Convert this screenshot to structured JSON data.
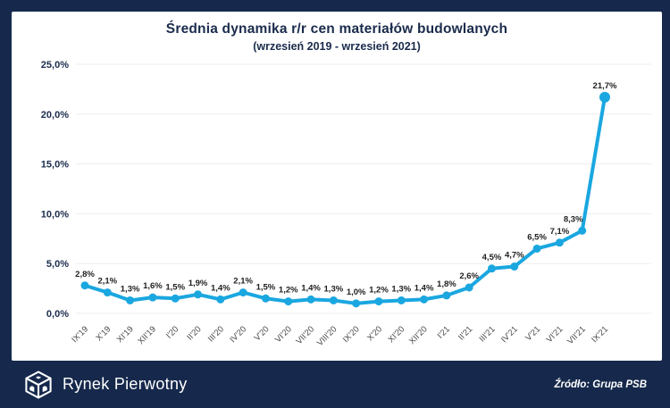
{
  "header": {
    "title": "Średnia dynamika r/r cen materiałów budowlanych",
    "subtitle": "(wrzesień 2019 - wrzesień 2021)"
  },
  "footer": {
    "brand": "Rynek Pierwotny",
    "source": "Źródło: Grupa PSB",
    "logo_icon": "cube-house-logo"
  },
  "colors": {
    "background_navy": "#16294c",
    "card_white": "#ffffff",
    "line_blue": "#1aa7e0",
    "title_navy": "#1a2b4c",
    "gridline_gray": "#ededed",
    "x_label_gray": "#4a4a4a",
    "data_label_dark": "#1f1f1f"
  },
  "chart_data": {
    "type": "line",
    "title": "Średnia dynamika r/r cen materiałów budowlanych",
    "subtitle": "(wrzesień 2019 - wrzesień 2021)",
    "xlabel": "",
    "ylabel": "",
    "ylim": [
      0,
      25
    ],
    "grid": true,
    "legend": false,
    "y_ticks": [
      "25,0%",
      "20,0%",
      "15,0%",
      "10,0%",
      "5,0%",
      "0,0%"
    ],
    "y_tick_values": [
      25,
      20,
      15,
      10,
      5,
      0
    ],
    "categories": [
      "IX'19",
      "X'19",
      "XI'19",
      "XII'19",
      "I'20",
      "II'20",
      "III'20",
      "IV'20",
      "V'20",
      "VI'20",
      "VII'20",
      "VIII'20",
      "IX'20",
      "X'20",
      "XI'20",
      "XII'20",
      "I'21",
      "II'21",
      "III'21",
      "IV'21",
      "V'21",
      "VI'21",
      "VII'21",
      "IX'21"
    ],
    "series": [
      {
        "name": "Średnia dynamika r/r cen materiałów budowlanych",
        "values": [
          2.8,
          2.1,
          1.3,
          1.6,
          1.5,
          1.9,
          1.4,
          2.1,
          1.5,
          1.2,
          1.4,
          1.3,
          1.0,
          1.2,
          1.3,
          1.4,
          1.8,
          2.6,
          4.5,
          4.7,
          6.5,
          7.1,
          8.3,
          21.7
        ],
        "point_labels": [
          "2,8%",
          "2,1%",
          "1,3%",
          "1,6%",
          "1,5%",
          "1,9%",
          "1,4%",
          "2,1%",
          "1,5%",
          "1,2%",
          "1,4%",
          "1,3%",
          "1,0%",
          "1,2%",
          "1,3%",
          "1,4%",
          "1,8%",
          "2,6%",
          "4,5%",
          "4,7%",
          "6,5%",
          "7,1%",
          "8,3%",
          "21,7%"
        ]
      }
    ]
  }
}
